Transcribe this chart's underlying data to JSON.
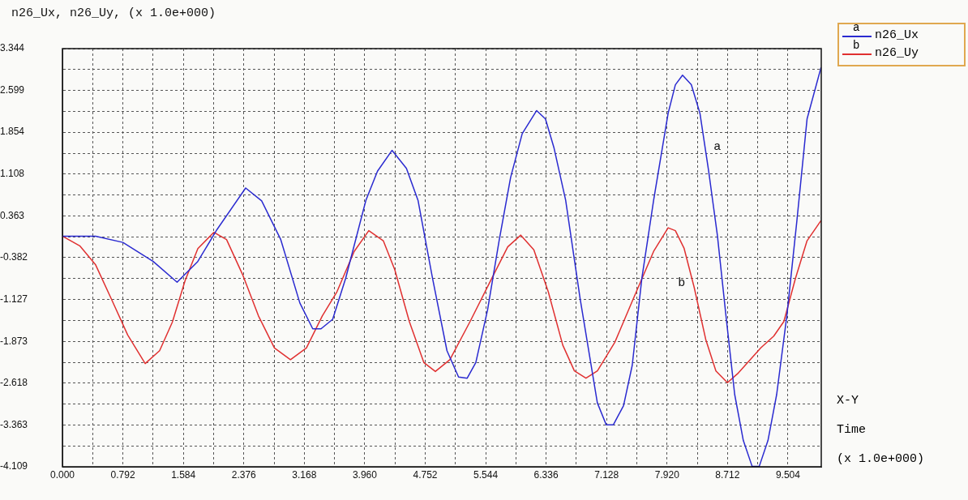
{
  "chart_data": {
    "type": "line",
    "ylabel": "n26_Ux, n26_Uy, (x 1.0e+000)",
    "xlabel": "Time",
    "annotations": [
      "a",
      "b",
      "X-Y",
      "(x 1.0e+000)"
    ],
    "series": [
      {
        "name": "n26_Ux",
        "color": "#2a2ad0",
        "x": [
          0,
          0.435,
          0.792,
          1.189,
          1.502,
          1.773,
          2.025,
          2.4,
          2.61,
          2.86,
          3.11,
          3.279,
          3.387,
          3.54,
          3.71,
          3.975,
          4.127,
          4.317,
          4.506,
          4.658,
          4.848,
          5.037,
          5.189,
          5.302,
          5.415,
          5.568,
          5.72,
          5.871,
          6.023,
          6.212,
          6.327,
          6.44,
          6.592,
          6.781,
          7.007,
          7.123,
          7.217,
          7.35,
          7.464,
          7.59,
          7.744,
          7.934,
          8.029,
          8.123,
          8.238,
          8.351,
          8.465,
          8.579,
          8.692,
          8.806,
          8.919,
          9.034,
          9.128,
          9.242,
          9.356,
          9.489,
          9.621,
          9.754,
          9.937
        ],
        "values": [
          0,
          0,
          -0.11,
          -0.45,
          -0.82,
          -0.45,
          0.12,
          0.86,
          0.63,
          -0.06,
          -1.19,
          -1.65,
          -1.65,
          -1.48,
          -0.75,
          0.64,
          1.16,
          1.53,
          1.21,
          0.64,
          -0.75,
          -2.04,
          -2.51,
          -2.53,
          -2.25,
          -1.32,
          -0.08,
          1.05,
          1.83,
          2.24,
          2.09,
          1.57,
          0.64,
          -1.11,
          -2.97,
          -3.36,
          -3.36,
          -3.02,
          -2.3,
          -0.75,
          0.64,
          2.19,
          2.7,
          2.87,
          2.7,
          2.19,
          1.16,
          0.02,
          -1.42,
          -2.82,
          -3.64,
          -4.1,
          -4.1,
          -3.64,
          -2.82,
          -1.42,
          0.28,
          2.09,
          3.01
        ]
      },
      {
        "name": "n26_Uy",
        "color": "#e03030",
        "x": [
          0,
          0.227,
          0.435,
          0.645,
          0.855,
          1.084,
          1.273,
          1.44,
          1.607,
          1.774,
          1.983,
          2.15,
          2.359,
          2.568,
          2.777,
          2.987,
          3.196,
          3.404,
          3.596,
          3.822,
          4.013,
          4.203,
          4.354,
          4.544,
          4.734,
          4.885,
          5.075,
          5.34,
          5.606,
          5.833,
          6.004,
          6.175,
          6.364,
          6.554,
          6.706,
          6.858,
          7.008,
          7.236,
          7.464,
          7.744,
          7.934,
          8.029,
          8.142,
          8.275,
          8.427,
          8.56,
          8.711,
          8.844,
          9.148,
          9.318,
          9.45,
          9.602,
          9.754,
          9.937
        ],
        "values": [
          0,
          -0.17,
          -0.51,
          -1.13,
          -1.76,
          -2.27,
          -2.04,
          -1.53,
          -0.79,
          -0.22,
          0.07,
          -0.06,
          -0.68,
          -1.42,
          -1.99,
          -2.2,
          -1.99,
          -1.42,
          -0.99,
          -0.27,
          0.1,
          -0.08,
          -0.6,
          -1.52,
          -2.25,
          -2.41,
          -2.2,
          -1.52,
          -0.8,
          -0.19,
          0.02,
          -0.24,
          -0.99,
          -1.94,
          -2.4,
          -2.53,
          -2.4,
          -1.89,
          -1.16,
          -0.27,
          0.15,
          0.1,
          -0.21,
          -0.91,
          -1.84,
          -2.4,
          -2.61,
          -2.45,
          -1.99,
          -1.78,
          -1.52,
          -0.75,
          -0.08,
          0.28
        ]
      }
    ],
    "xlim": [
      0,
      9.94
    ],
    "xticks": [
      {
        "value": 0,
        "label": "0.000"
      },
      {
        "value": 0.396,
        "label": null
      },
      0.792,
      {
        "value": 1.188,
        "label": null
      },
      1.584,
      {
        "value": 1.98,
        "label": null
      },
      2.376,
      {
        "value": 2.772,
        "label": null
      },
      3.168,
      {
        "value": 3.564,
        "label": null
      },
      {
        "value": 3.96,
        "label": "3.960"
      },
      {
        "value": 4.356,
        "label": null
      },
      4.752,
      {
        "value": 5.148,
        "label": null
      },
      5.544,
      {
        "value": 5.94,
        "label": null
      },
      6.336,
      {
        "value": 6.732,
        "label": null
      },
      7.128,
      {
        "value": 7.524,
        "label": null
      },
      {
        "value": 7.92,
        "label": "7.920"
      },
      {
        "value": 8.316,
        "label": null
      },
      8.712,
      {
        "value": 9.108,
        "label": null
      },
      9.504
    ],
    "ylim": [
      -4.109,
      3.344
    ],
    "yticks": [
      -4.109,
      {
        "value": -3.74,
        "label": null
      },
      -3.363,
      {
        "value": -2.99,
        "label": null
      },
      -2.618,
      {
        "value": -2.25,
        "label": null
      },
      -1.873,
      {
        "value": -1.5,
        "label": null
      },
      -1.127,
      {
        "value": -0.75,
        "label": null
      },
      -0.382,
      {
        "value": -0.01,
        "label": null
      },
      0.363,
      {
        "value": 0.74,
        "label": null
      },
      1.108,
      {
        "value": 1.48,
        "label": null
      },
      1.854,
      {
        "value": 2.23,
        "label": null
      },
      2.599,
      {
        "value": 2.97,
        "label": null
      },
      3.344
    ],
    "grid": true,
    "legend": "top right",
    "line_style": "solid",
    "marker": "none"
  }
}
